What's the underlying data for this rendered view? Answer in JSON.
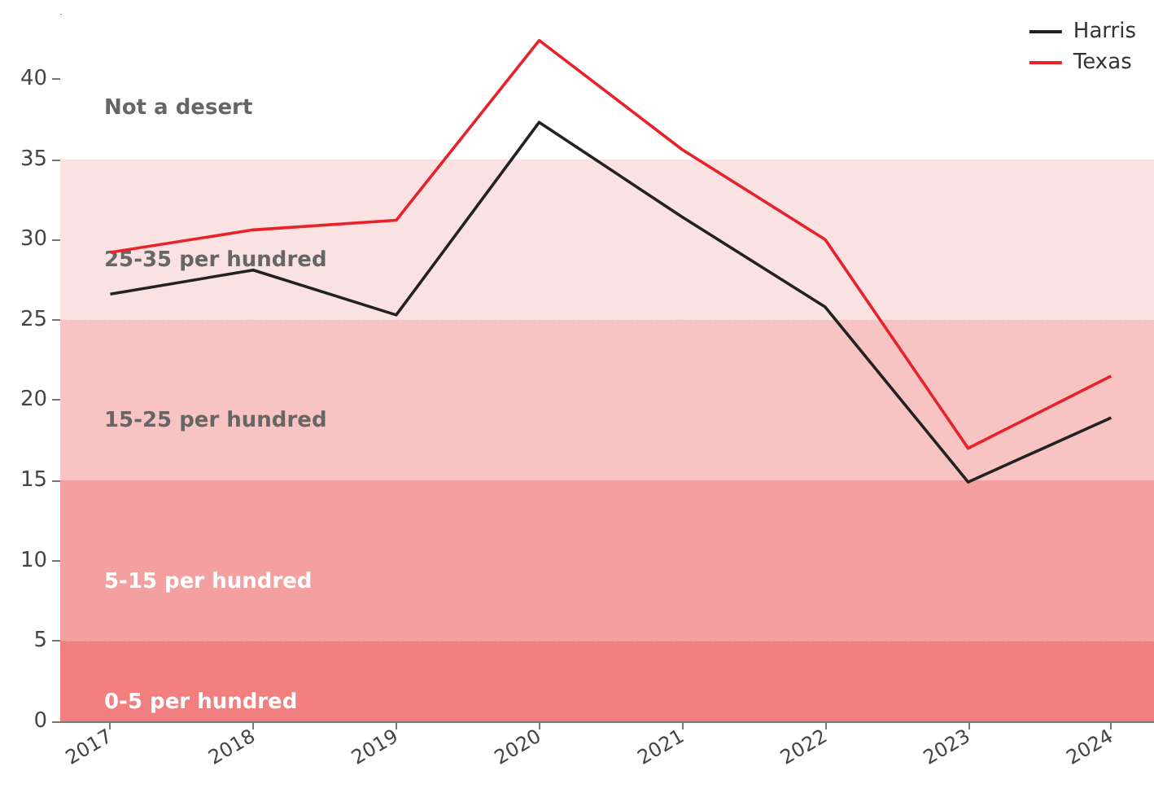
{
  "chart_data": {
    "type": "line",
    "x": [
      2017,
      2018,
      2019,
      2020,
      2021,
      2022,
      2023,
      2024
    ],
    "xlim": [
      2016.65,
      2024.3
    ],
    "xticks": [
      2017,
      2018,
      2019,
      2020,
      2021,
      2022,
      2023,
      2024
    ],
    "ylim": [
      0,
      44
    ],
    "yticks": [
      0,
      5,
      10,
      15,
      20,
      25,
      30,
      35,
      40
    ],
    "series": [
      {
        "name": "Harris",
        "color": "#222222",
        "values": [
          26.6,
          28.1,
          25.3,
          37.3,
          31.4,
          25.8,
          14.9,
          18.9
        ]
      },
      {
        "name": "Texas",
        "color": "#e8222a",
        "values": [
          29.2,
          30.6,
          31.2,
          42.4,
          35.6,
          30.0,
          17.0,
          21.5
        ]
      }
    ],
    "bands": [
      {
        "axis": "y",
        "from": 0,
        "to": 5,
        "label": "0-5 per hundred",
        "color": "#f17f7f"
      },
      {
        "axis": "y",
        "from": 5,
        "to": 15,
        "label": "5-15 per hundred",
        "color": "#f4a0a0"
      },
      {
        "axis": "y",
        "from": 15,
        "to": 25,
        "label": "15-25 per hundred",
        "color": "#f8c3c3"
      },
      {
        "axis": "y",
        "from": 25,
        "to": 35,
        "label": "25-35 per hundred",
        "color": "#fbe2e2"
      },
      {
        "axis": "y",
        "from": 35,
        "to": 44,
        "label": "Not a desert",
        "color": "#ffffff"
      }
    ],
    "grid": true,
    "legend": "top right",
    "line_style": "solid",
    "marker": "none"
  }
}
